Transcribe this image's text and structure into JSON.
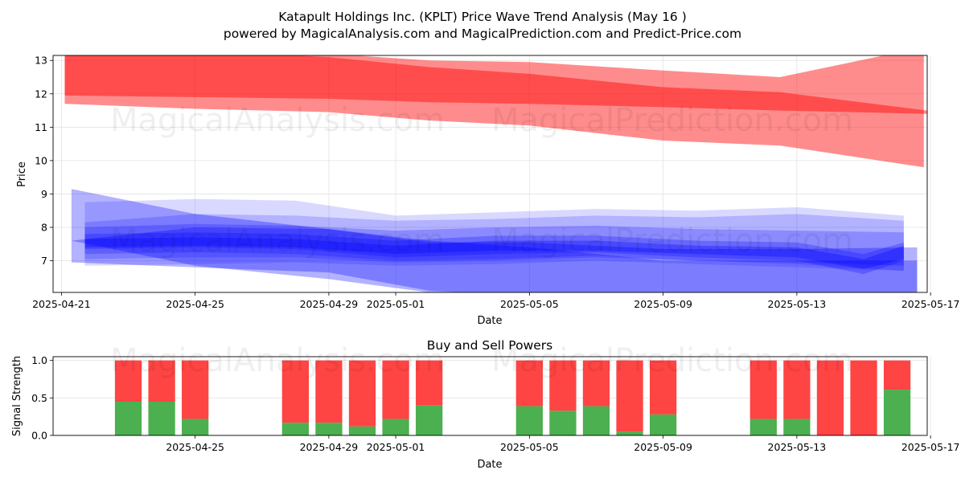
{
  "chart_data": [
    {
      "type": "area",
      "title_line1": "Katapult Holdings Inc. (KPLT) Price Wave Trend Analysis (May 16 )",
      "title_line2": "powered by MagicalAnalysis.com and MagicalPrediction.com and Predict-Price.com",
      "xlabel": "Date",
      "ylabel": "Price",
      "x_range_day": [
        -0.25,
        25.9
      ],
      "ylim": [
        6.05,
        13.15
      ],
      "x_ticks": [
        {
          "day": 0,
          "label": "2025-04-21"
        },
        {
          "day": 4,
          "label": "2025-04-25"
        },
        {
          "day": 8,
          "label": "2025-04-29"
        },
        {
          "day": 10,
          "label": "2025-05-01"
        },
        {
          "day": 14,
          "label": "2025-05-05"
        },
        {
          "day": 18,
          "label": "2025-05-09"
        },
        {
          "day": 22,
          "label": "2025-05-13"
        },
        {
          "day": 26,
          "label": "2025-05-17"
        }
      ],
      "y_ticks": [
        7,
        8,
        9,
        10,
        11,
        12,
        13
      ],
      "red_bands": [
        {
          "opacity": 0.45,
          "days": [
            0.1,
            4,
            8,
            11,
            14,
            18,
            21.5,
            25.8
          ],
          "upper": [
            13.4,
            13.3,
            13.2,
            13.0,
            12.95,
            12.7,
            12.5,
            13.4
          ],
          "lower": [
            11.7,
            11.55,
            11.45,
            11.2,
            11.05,
            10.6,
            10.45,
            9.8
          ]
        },
        {
          "opacity": 0.45,
          "days": [
            0.1,
            4,
            8,
            11,
            14,
            18,
            21.5,
            25.9
          ],
          "upper": [
            13.4,
            13.3,
            13.1,
            12.8,
            12.6,
            12.2,
            12.05,
            11.5
          ],
          "lower": [
            11.95,
            11.9,
            11.85,
            11.75,
            11.7,
            11.6,
            11.5,
            11.4
          ]
        }
      ],
      "blue_bands": [
        {
          "opacity": 0.3,
          "days": [
            0.3,
            4,
            8,
            11,
            14,
            18,
            22,
            25.6
          ],
          "upper": [
            9.15,
            8.4,
            7.95,
            7.55,
            7.55,
            7.35,
            7.35,
            7.4
          ],
          "lower": [
            7.6,
            6.85,
            6.45,
            6.05,
            5.95,
            5.9,
            5.95,
            5.95
          ]
        },
        {
          "opacity": 0.3,
          "days": [
            0.3,
            4,
            8,
            11,
            14,
            18,
            22,
            25.6
          ],
          "upper": [
            7.6,
            8.0,
            7.95,
            7.6,
            7.4,
            7.0,
            7.0,
            7.0
          ],
          "lower": [
            6.95,
            6.8,
            6.65,
            6.1,
            5.95,
            5.95,
            5.95,
            5.95
          ]
        },
        {
          "opacity": 0.15,
          "days": [
            0.7,
            4,
            7,
            10,
            13,
            16,
            19,
            22,
            25.2
          ],
          "upper": [
            8.75,
            8.85,
            8.8,
            8.35,
            8.45,
            8.55,
            8.5,
            8.6,
            8.35
          ],
          "lower": [
            6.85,
            6.9,
            6.95,
            6.85,
            6.9,
            7.0,
            6.9,
            6.8,
            6.7
          ]
        },
        {
          "opacity": 0.18,
          "days": [
            0.7,
            4,
            7,
            10,
            13,
            16,
            19,
            22,
            25.2
          ],
          "upper": [
            8.15,
            8.4,
            8.35,
            8.2,
            8.25,
            8.35,
            8.3,
            8.4,
            8.2
          ],
          "lower": [
            7.05,
            7.1,
            7.1,
            6.95,
            7.0,
            7.1,
            7.0,
            6.9,
            6.7
          ]
        },
        {
          "opacity": 0.22,
          "days": [
            0.7,
            4,
            7,
            10,
            13,
            16,
            19,
            22,
            25.2
          ],
          "upper": [
            8.0,
            8.1,
            8.05,
            7.9,
            8.0,
            8.05,
            7.95,
            7.9,
            7.85
          ],
          "lower": [
            7.2,
            7.25,
            7.2,
            7.0,
            7.05,
            7.15,
            7.0,
            6.95,
            6.85
          ]
        },
        {
          "opacity": 0.25,
          "days": [
            0.7,
            4,
            7,
            10,
            13,
            16,
            19,
            22,
            24,
            25.2
          ],
          "upper": [
            7.8,
            7.85,
            7.8,
            7.6,
            7.75,
            7.75,
            7.6,
            7.55,
            7.2,
            7.55
          ],
          "lower": [
            7.35,
            7.4,
            7.35,
            7.1,
            7.2,
            7.25,
            7.1,
            7.0,
            6.6,
            7.0
          ]
        },
        {
          "opacity": 0.3,
          "days": [
            0.7,
            4,
            7,
            10,
            13,
            16,
            19,
            22,
            24,
            25.2
          ],
          "upper": [
            7.65,
            7.7,
            7.65,
            7.45,
            7.6,
            7.6,
            7.45,
            7.4,
            7.05,
            7.45
          ],
          "lower": [
            7.4,
            7.45,
            7.4,
            7.2,
            7.3,
            7.3,
            7.2,
            7.1,
            6.75,
            7.05
          ]
        }
      ]
    },
    {
      "type": "bar",
      "title": "Buy and Sell Powers",
      "xlabel": "Date",
      "ylabel": "Signal Strength",
      "x_range_day": [
        -0.25,
        25.9
      ],
      "ylim": [
        0,
        1.05
      ],
      "x_ticks": [
        {
          "day": 4,
          "label": "2025-04-25"
        },
        {
          "day": 8,
          "label": "2025-04-29"
        },
        {
          "day": 10,
          "label": "2025-05-01"
        },
        {
          "day": 14,
          "label": "2025-05-05"
        },
        {
          "day": 18,
          "label": "2025-05-09"
        },
        {
          "day": 22,
          "label": "2025-05-13"
        },
        {
          "day": 26,
          "label": "2025-05-17"
        }
      ],
      "y_ticks": [
        0.0,
        0.5,
        1.0
      ],
      "y_tick_labels": [
        "0.0",
        "0.5",
        "1.0"
      ],
      "bar_days": [
        2,
        3,
        4,
        7,
        8,
        9,
        10,
        11,
        14,
        15,
        16,
        17,
        18,
        21,
        22,
        23,
        24,
        25
      ],
      "buy_values": [
        0.45,
        0.45,
        0.22,
        0.17,
        0.17,
        0.12,
        0.22,
        0.4,
        0.39,
        0.33,
        0.39,
        0.05,
        0.28,
        0.22,
        0.22,
        0.0,
        0.0,
        0.61
      ],
      "sell_values": [
        0.55,
        0.55,
        0.78,
        0.83,
        0.83,
        0.88,
        0.78,
        0.6,
        0.61,
        0.67,
        0.61,
        0.95,
        0.72,
        0.78,
        0.78,
        1.0,
        1.0,
        0.39
      ]
    }
  ],
  "watermarks": {
    "left": "MagicalAnalysis.com",
    "right": "MagicalPrediction.com"
  },
  "colors": {
    "red_band": "#ff0000",
    "blue_band": "#0000ff",
    "buy": "#4caf50",
    "sell": "#ff4444",
    "grid": "#e3e3e3"
  }
}
